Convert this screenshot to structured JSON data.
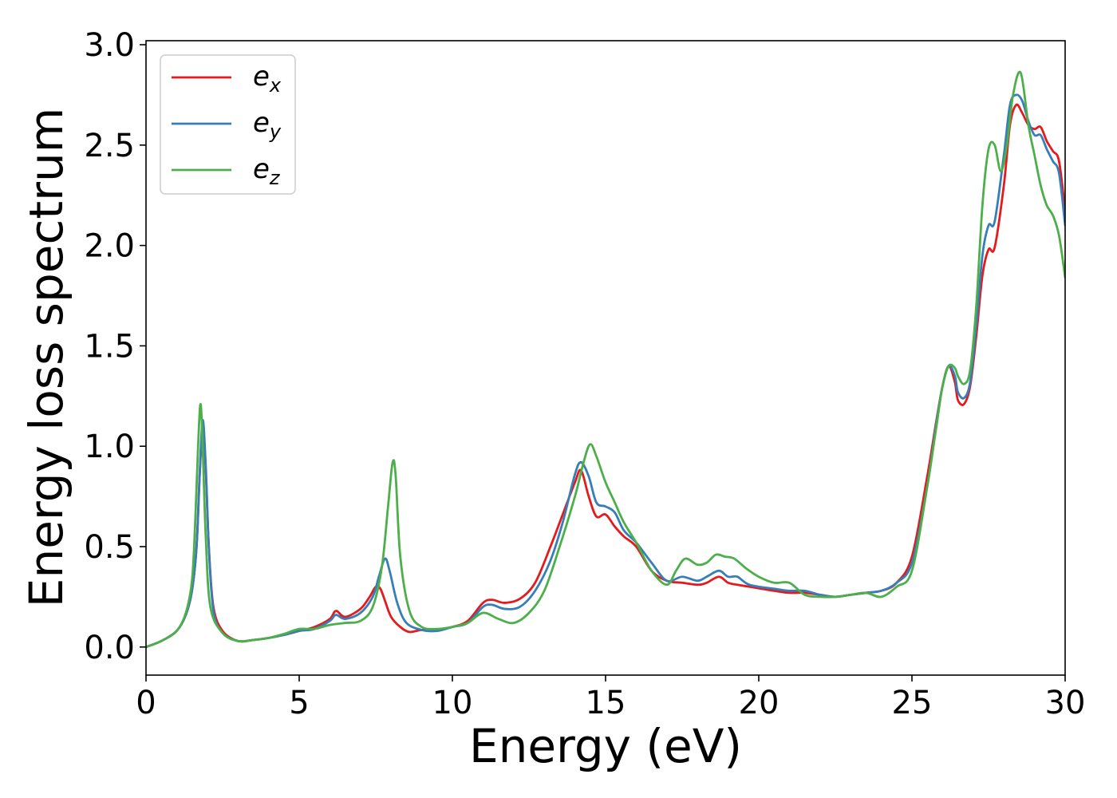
{
  "chart_data": {
    "type": "line",
    "xlabel": "Energy (eV)",
    "ylabel": "Energy loss spectrum",
    "xlim": [
      0,
      30
    ],
    "ylim": [
      -0.14,
      3.02
    ],
    "xticks": [
      0,
      5,
      10,
      15,
      20,
      25,
      30
    ],
    "yticks": [
      0.0,
      0.5,
      1.0,
      1.5,
      2.0,
      2.5,
      3.0
    ],
    "xtick_labels": [
      "0",
      "5",
      "10",
      "15",
      "20",
      "25",
      "30"
    ],
    "ytick_labels": [
      "0.0",
      "0.5",
      "1.0",
      "1.5",
      "2.0",
      "2.5",
      "3.0"
    ],
    "grid": false,
    "legend_position": "top-left",
    "series": [
      {
        "name": "e_x",
        "legend_base": "e",
        "legend_sub": "x",
        "color": "#e41a1c",
        "x": [
          0,
          0.5,
          1.0,
          1.3,
          1.5,
          1.65,
          1.75,
          1.85,
          1.95,
          2.05,
          2.2,
          2.5,
          3.0,
          3.5,
          4.0,
          4.5,
          5.0,
          5.5,
          6.0,
          6.2,
          6.5,
          7.0,
          7.3,
          7.5,
          7.65,
          7.8,
          8.0,
          8.3,
          8.6,
          9.0,
          9.5,
          10.0,
          10.5,
          11.0,
          11.3,
          11.7,
          12.2,
          12.7,
          13.2,
          13.6,
          14.0,
          14.2,
          14.45,
          14.7,
          15.0,
          15.3,
          15.6,
          16.0,
          16.5,
          17.0,
          17.5,
          18.0,
          18.3,
          18.7,
          19.0,
          19.3,
          19.7,
          20.5,
          21.0,
          21.5,
          22.0,
          22.5,
          23.0,
          23.5,
          24.0,
          24.5,
          25.0,
          25.5,
          25.8,
          26.0,
          26.2,
          26.4,
          26.5,
          26.7,
          26.9,
          27.1,
          27.3,
          27.5,
          27.7,
          28.0,
          28.2,
          28.4,
          28.6,
          28.8,
          29.0,
          29.2,
          29.4,
          29.6,
          29.8,
          30.0
        ],
        "y": [
          0.0,
          0.03,
          0.08,
          0.16,
          0.28,
          0.5,
          0.85,
          1.1,
          0.88,
          0.5,
          0.2,
          0.08,
          0.03,
          0.035,
          0.045,
          0.06,
          0.08,
          0.1,
          0.14,
          0.18,
          0.15,
          0.19,
          0.25,
          0.3,
          0.29,
          0.23,
          0.15,
          0.1,
          0.075,
          0.085,
          0.085,
          0.1,
          0.13,
          0.22,
          0.235,
          0.22,
          0.24,
          0.32,
          0.5,
          0.66,
          0.82,
          0.88,
          0.75,
          0.65,
          0.66,
          0.6,
          0.55,
          0.5,
          0.38,
          0.33,
          0.32,
          0.31,
          0.32,
          0.35,
          0.32,
          0.31,
          0.3,
          0.28,
          0.27,
          0.27,
          0.26,
          0.25,
          0.26,
          0.27,
          0.28,
          0.32,
          0.45,
          0.85,
          1.13,
          1.3,
          1.4,
          1.32,
          1.23,
          1.21,
          1.3,
          1.55,
          1.85,
          1.98,
          1.99,
          2.3,
          2.6,
          2.7,
          2.66,
          2.6,
          2.58,
          2.59,
          2.52,
          2.47,
          2.42,
          2.17
        ]
      },
      {
        "name": "e_y",
        "legend_base": "e",
        "legend_sub": "y",
        "color": "#377eb8",
        "x": [
          0,
          0.5,
          1.0,
          1.3,
          1.5,
          1.65,
          1.75,
          1.85,
          1.95,
          2.05,
          2.2,
          2.5,
          3.0,
          3.5,
          4.0,
          4.5,
          5.0,
          5.5,
          6.0,
          6.2,
          6.5,
          7.0,
          7.4,
          7.6,
          7.8,
          7.95,
          8.2,
          8.5,
          9.0,
          9.5,
          10.0,
          10.5,
          11.0,
          11.3,
          11.7,
          12.2,
          12.7,
          13.2,
          13.6,
          14.0,
          14.2,
          14.45,
          14.7,
          15.0,
          15.3,
          15.6,
          16.0,
          16.5,
          17.0,
          17.5,
          18.0,
          18.3,
          18.7,
          19.0,
          19.3,
          19.7,
          20.5,
          21.0,
          21.5,
          22.0,
          22.5,
          23.0,
          23.5,
          24.0,
          24.5,
          25.0,
          25.5,
          25.8,
          26.0,
          26.2,
          26.4,
          26.5,
          26.7,
          26.9,
          27.1,
          27.3,
          27.5,
          27.7,
          28.0,
          28.2,
          28.4,
          28.6,
          28.8,
          29.0,
          29.2,
          29.4,
          29.6,
          29.8,
          30.0
        ],
        "y": [
          0.0,
          0.03,
          0.08,
          0.16,
          0.28,
          0.5,
          0.85,
          1.13,
          0.9,
          0.5,
          0.18,
          0.07,
          0.03,
          0.035,
          0.045,
          0.06,
          0.08,
          0.09,
          0.13,
          0.16,
          0.14,
          0.17,
          0.25,
          0.35,
          0.44,
          0.38,
          0.22,
          0.12,
          0.085,
          0.08,
          0.1,
          0.12,
          0.2,
          0.21,
          0.19,
          0.2,
          0.28,
          0.43,
          0.62,
          0.86,
          0.92,
          0.85,
          0.72,
          0.7,
          0.67,
          0.58,
          0.52,
          0.42,
          0.33,
          0.35,
          0.33,
          0.35,
          0.38,
          0.35,
          0.35,
          0.31,
          0.29,
          0.28,
          0.28,
          0.26,
          0.25,
          0.26,
          0.27,
          0.28,
          0.32,
          0.42,
          0.8,
          1.12,
          1.3,
          1.4,
          1.35,
          1.27,
          1.24,
          1.32,
          1.6,
          1.95,
          2.1,
          2.12,
          2.45,
          2.7,
          2.75,
          2.72,
          2.62,
          2.55,
          2.55,
          2.48,
          2.42,
          2.36,
          2.1
        ]
      },
      {
        "name": "e_z",
        "legend_base": "e",
        "legend_sub": "z",
        "color": "#4daf4a",
        "x": [
          0,
          0.5,
          1.0,
          1.3,
          1.5,
          1.6,
          1.7,
          1.78,
          1.85,
          1.95,
          2.1,
          2.5,
          3.0,
          3.5,
          4.0,
          4.5,
          5.0,
          5.5,
          6.0,
          6.5,
          7.0,
          7.4,
          7.7,
          7.9,
          8.05,
          8.15,
          8.3,
          8.6,
          9.0,
          9.5,
          10.0,
          10.5,
          11.0,
          11.5,
          12.0,
          12.5,
          13.0,
          13.5,
          14.0,
          14.3,
          14.5,
          14.7,
          15.0,
          15.3,
          15.6,
          16.0,
          16.5,
          17.0,
          17.3,
          17.6,
          18.0,
          18.3,
          18.6,
          18.9,
          19.2,
          19.6,
          20.0,
          20.5,
          21.0,
          21.5,
          22.0,
          22.5,
          23.0,
          23.5,
          24.0,
          24.5,
          25.0,
          25.5,
          25.8,
          26.0,
          26.2,
          26.4,
          26.5,
          26.7,
          26.9,
          27.1,
          27.3,
          27.5,
          27.7,
          27.9,
          28.1,
          28.3,
          28.55,
          28.8,
          29.0,
          29.2,
          29.4,
          29.6,
          29.8,
          30.0
        ],
        "y": [
          0.0,
          0.03,
          0.08,
          0.17,
          0.33,
          0.6,
          1.0,
          1.21,
          1.0,
          0.55,
          0.2,
          0.07,
          0.03,
          0.035,
          0.045,
          0.065,
          0.09,
          0.09,
          0.11,
          0.12,
          0.13,
          0.2,
          0.4,
          0.7,
          0.92,
          0.85,
          0.45,
          0.18,
          0.1,
          0.09,
          0.1,
          0.12,
          0.17,
          0.14,
          0.12,
          0.17,
          0.28,
          0.5,
          0.75,
          0.93,
          1.01,
          0.95,
          0.82,
          0.72,
          0.62,
          0.52,
          0.38,
          0.31,
          0.38,
          0.44,
          0.41,
          0.42,
          0.46,
          0.45,
          0.44,
          0.39,
          0.35,
          0.32,
          0.32,
          0.26,
          0.25,
          0.25,
          0.26,
          0.27,
          0.25,
          0.3,
          0.38,
          0.8,
          1.1,
          1.3,
          1.4,
          1.39,
          1.35,
          1.31,
          1.38,
          1.7,
          2.2,
          2.48,
          2.5,
          2.37,
          2.5,
          2.75,
          2.86,
          2.6,
          2.45,
          2.3,
          2.2,
          2.15,
          2.05,
          1.84
        ]
      }
    ]
  }
}
